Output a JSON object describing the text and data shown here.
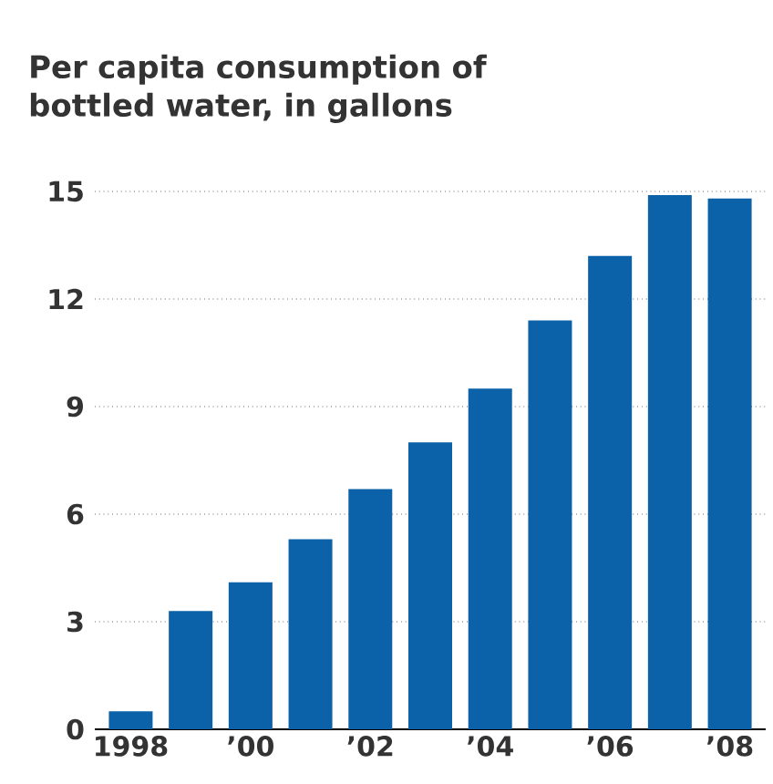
{
  "chart_data": {
    "type": "bar",
    "title": "Per capita consumption of bottled water, in gallons",
    "categories": [
      "1998",
      null,
      "’00",
      null,
      "’02",
      null,
      "’04",
      null,
      "’06",
      null,
      "’08"
    ],
    "values": [
      0.5,
      3.3,
      4.1,
      5.3,
      6.7,
      8.0,
      9.5,
      11.4,
      13.2,
      14.9,
      14.8
    ],
    "color": "#0b62a9",
    "ylim": [
      0,
      15
    ],
    "yticks": [
      0,
      3,
      6,
      9,
      12,
      15
    ],
    "grid": "y"
  }
}
